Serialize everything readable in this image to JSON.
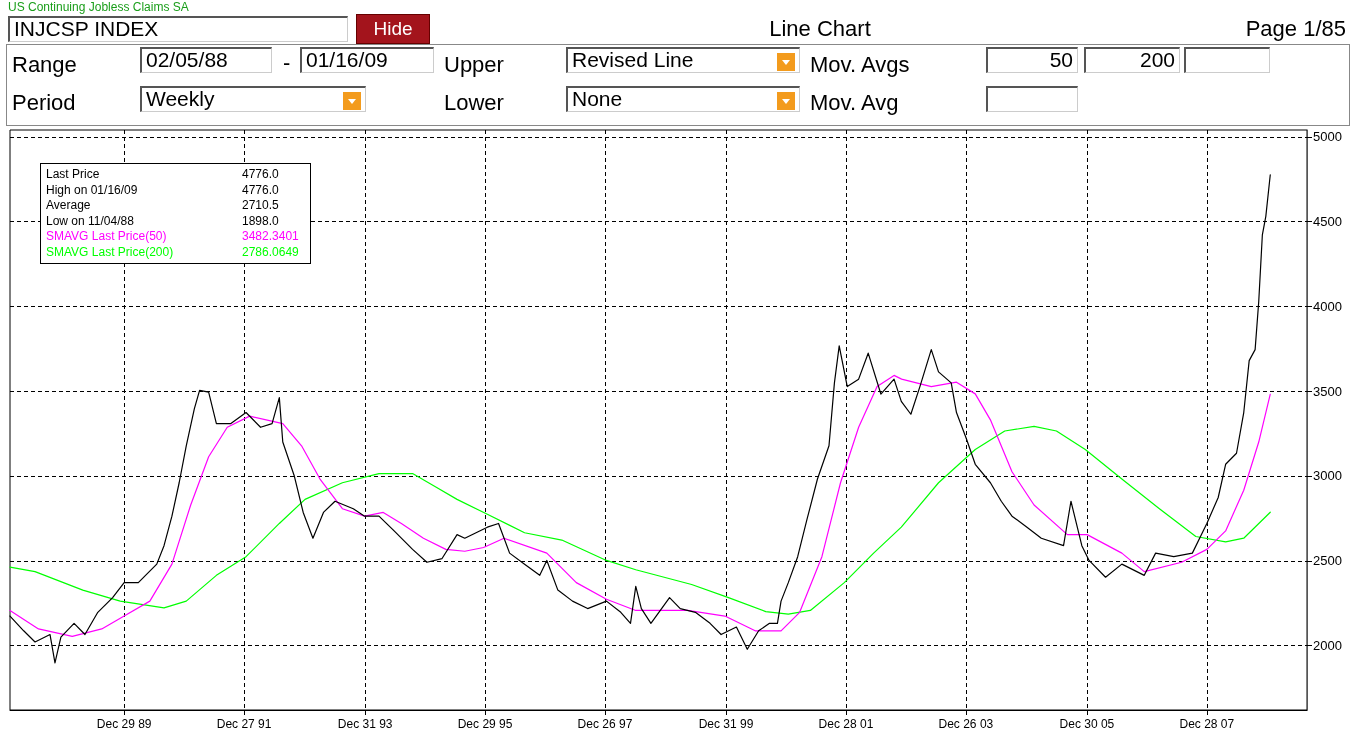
{
  "chart_data": {
    "type": "line",
    "title": "US Continuing Jobless Claims SA",
    "subtitle": "Line Chart",
    "annotations": [
      "INJCSP INDEX",
      "Hide",
      "Page 1/85",
      "Range",
      "02/05/88",
      "-",
      "01/16/09",
      "Upper",
      "Revised Line",
      "Mov. Avgs",
      "50",
      "200",
      "Period",
      "Weekly",
      "Lower",
      "None",
      "Mov. Avg",
      "4776.0",
      "High on  01/16/09",
      "4776.0",
      "Average",
      "2710.5",
      "Low on  11/04/88",
      "1898.0",
      "3482.3401",
      "2786.0649"
    ],
    "xlim": [
      "1988-02-05",
      "2009-08-27"
    ],
    "xticks": [
      {
        "value": "1989-12-29",
        "label": "Dec 29 89"
      },
      {
        "value": "1991-12-27",
        "label": "Dec 27 91"
      },
      {
        "value": "1993-12-31",
        "label": "Dec 31 93"
      },
      {
        "value": "1995-12-29",
        "label": "Dec 29 95"
      },
      {
        "value": "1997-12-26",
        "label": "Dec 26 97"
      },
      {
        "value": "1999-12-31",
        "label": "Dec 31 99"
      },
      {
        "value": "2001-12-28",
        "label": "Dec 28 01"
      },
      {
        "value": "2003-12-26",
        "label": "Dec 26 03"
      },
      {
        "value": "2005-12-30",
        "label": "Dec 30 05"
      },
      {
        "value": "2007-12-28",
        "label": "Dec 28 07"
      }
    ],
    "ylim": [
      1620,
      5040
    ],
    "yticks": [
      2000,
      2500,
      3000,
      3500,
      4000,
      4500,
      5000
    ],
    "grid": true,
    "legend": "top left",
    "marker": "none",
    "series": [
      {
        "name": "Last Price",
        "color": "#000000",
        "x": [
          "1988-02-05",
          "1988-04-28",
          "1988-07-06",
          "1988-10-05",
          "1988-11-04",
          "1988-12-10",
          "1989-02-28",
          "1989-05-05",
          "1989-07-22",
          "1989-10-20",
          "1989-12-29",
          "1990-03-25",
          "1990-07-15",
          "1990-08-28",
          "1990-10-15",
          "1990-11-28",
          "1991-01-10",
          "1991-02-28",
          "1991-04-01",
          "1991-05-26",
          "1991-07-12",
          "1991-10-08",
          "1992-01-08",
          "1992-04-05",
          "1992-06-14",
          "1992-07-28",
          "1992-08-18",
          "1992-10-26",
          "1992-12-20",
          "1993-02-17",
          "1993-04-22",
          "1993-07-01",
          "1993-10-20",
          "1993-12-28",
          "1994-03-25",
          "1994-06-25",
          "1994-10-15",
          "1995-01-10",
          "1995-04-12",
          "1995-07-12",
          "1995-08-28",
          "1996-01-12",
          "1996-03-20",
          "1996-05-26",
          "1996-08-25",
          "1996-11-25",
          "1997-01-07",
          "1997-03-15",
          "1997-06-12",
          "1997-09-12",
          "1998-01-04",
          "1998-04-01",
          "1998-05-30",
          "1998-07-01",
          "1998-08-04",
          "1998-10-01",
          "1999-01-22",
          "1999-03-28",
          "1999-06-28",
          "1999-09-25",
          "1999-12-01",
          "2000-03-03",
          "2000-05-08",
          "2000-07-16",
          "2000-09-20",
          "2000-11-07",
          "2000-11-29",
          "2001-01-12",
          "2001-03-10",
          "2001-05-05",
          "2001-07-08",
          "2001-09-16",
          "2001-10-19",
          "2001-11-17",
          "2002-01-05",
          "2002-03-15",
          "2002-05-12",
          "2002-07-28",
          "2002-10-16",
          "2002-11-29",
          "2003-01-26",
          "2003-03-22",
          "2003-05-30",
          "2003-07-13",
          "2003-09-28",
          "2003-10-30",
          "2003-12-28",
          "2004-02-21",
          "2004-05-23",
          "2004-07-28",
          "2004-10-01",
          "2004-12-31",
          "2005-03-28",
          "2005-08-10",
          "2005-09-24",
          "2005-11-29",
          "2006-01-12",
          "2006-04-22",
          "2006-07-30",
          "2006-12-13",
          "2007-02-20",
          "2007-06-10",
          "2007-10-01",
          "2007-12-28",
          "2008-03-06",
          "2008-04-20",
          "2008-06-25",
          "2008-08-08",
          "2008-09-10",
          "2008-10-16",
          "2008-11-07",
          "2008-11-29",
          "2008-12-20",
          "2009-01-16"
        ],
        "values": [
          2174,
          2087,
          2021,
          2065,
          1898,
          2050,
          2131,
          2065,
          2196,
          2283,
          2371,
          2371,
          2480,
          2589,
          2763,
          2960,
          3178,
          3396,
          3505,
          3494,
          3309,
          3309,
          3374,
          3287,
          3309,
          3462,
          3200,
          3003,
          2785,
          2633,
          2785,
          2851,
          2807,
          2763,
          2763,
          2676,
          2567,
          2491,
          2513,
          2654,
          2633,
          2698,
          2720,
          2545,
          2480,
          2414,
          2502,
          2327,
          2262,
          2218,
          2262,
          2196,
          2131,
          2349,
          2218,
          2131,
          2283,
          2218,
          2196,
          2131,
          2065,
          2109,
          1978,
          2087,
          2131,
          2131,
          2262,
          2371,
          2524,
          2742,
          2982,
          3178,
          3549,
          3767,
          3527,
          3571,
          3724,
          3483,
          3571,
          3440,
          3364,
          3527,
          3745,
          3614,
          3549,
          3374,
          3222,
          3069,
          2960,
          2851,
          2763,
          2698,
          2633,
          2589,
          2851,
          2589,
          2502,
          2403,
          2480,
          2414,
          2545,
          2524,
          2545,
          2720,
          2873,
          3069,
          3134,
          3374,
          3680,
          3745,
          4029,
          4422,
          4531,
          4776
        ]
      },
      {
        "name": "SMAVG Last Price(50)",
        "color": "#ff00ff",
        "x": [
          "1988-02-05",
          "1988-07-27",
          "1989-02-17",
          "1989-08-15",
          "1989-12-29",
          "1990-06-03",
          "1990-10-15",
          "1991-02-06",
          "1991-05-26",
          "1991-09-16",
          "1992-01-30",
          "1992-08-18",
          "1992-12-10",
          "1993-04-01",
          "1993-08-15",
          "1993-12-28",
          "1994-04-20",
          "1994-08-08",
          "1994-12-20",
          "1995-05-05",
          "1995-08-28",
          "1995-12-20",
          "1996-04-22",
          "1997-01-07",
          "1997-07-05",
          "1998-01-04",
          "1998-07-01",
          "1999-05-12",
          "1999-12-24",
          "2000-06-25",
          "2000-11-29",
          "2001-03-22",
          "2001-08-04",
          "2001-11-25",
          "2002-03-15",
          "2002-07-05",
          "2002-10-16",
          "2002-12-01",
          "2003-05-30",
          "2003-10-30",
          "2004-02-21",
          "2004-05-23",
          "2004-10-01",
          "2005-02-12",
          "2005-09-02",
          "2005-12-31",
          "2006-07-30",
          "2006-12-13",
          "2007-07-28",
          "2007-12-28",
          "2008-04-20",
          "2008-08-08",
          "2008-11-07",
          "2009-01-16"
        ],
        "values": [
          2207,
          2098,
          2054,
          2098,
          2174,
          2262,
          2480,
          2829,
          3113,
          3287,
          3353,
          3309,
          3178,
          2982,
          2807,
          2763,
          2785,
          2720,
          2633,
          2567,
          2556,
          2578,
          2633,
          2545,
          2371,
          2273,
          2207,
          2207,
          2174,
          2087,
          2087,
          2196,
          2524,
          2960,
          3287,
          3527,
          3593,
          3571,
          3527,
          3553,
          3484,
          3331,
          3025,
          2829,
          2654,
          2654,
          2545,
          2436,
          2491,
          2567,
          2676,
          2916,
          3200,
          3482
        ]
      },
      {
        "name": "SMAVG Last Price(200)",
        "color": "#00ff00",
        "x": [
          "1988-02-05",
          "1988-07-06",
          "1989-04-22",
          "1989-12-05",
          "1990-08-28",
          "1991-01-10",
          "1991-07-12",
          "1992-01-08",
          "1992-07-28",
          "1992-12-31",
          "1993-08-15",
          "1994-03-25",
          "1994-10-15",
          "1995-02-28",
          "1995-07-12",
          "1996-01-12",
          "1996-08-25",
          "1997-04-08",
          "1998-01-04",
          "1998-07-01",
          "1999-06-05",
          "2000-01-15",
          "2000-08-28",
          "2001-01-12",
          "2001-05-26",
          "2001-12-18",
          "2002-06-14",
          "2002-11-29",
          "2003-07-13",
          "2004-02-21",
          "2004-08-18",
          "2005-02-12",
          "2005-06-28",
          "2005-12-20",
          "2006-07-30",
          "2007-03-15",
          "2007-10-22",
          "2008-04-20",
          "2008-08-08",
          "2009-01-16"
        ],
        "values": [
          2462,
          2436,
          2327,
          2262,
          2222,
          2262,
          2414,
          2524,
          2720,
          2862,
          2960,
          3014,
          3014,
          2938,
          2862,
          2774,
          2665,
          2622,
          2502,
          2447,
          2360,
          2283,
          2200,
          2185,
          2207,
          2371,
          2545,
          2698,
          2960,
          3156,
          3265,
          3292,
          3265,
          3156,
          2982,
          2807,
          2643,
          2611,
          2633,
          2786
        ]
      }
    ]
  }
}
